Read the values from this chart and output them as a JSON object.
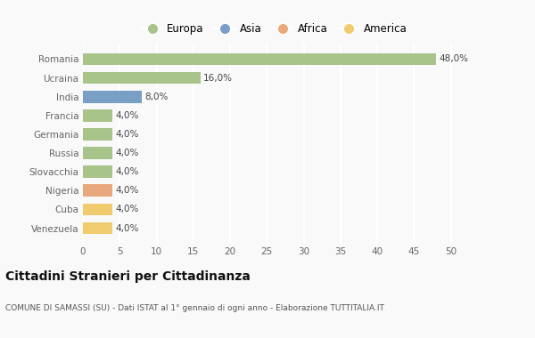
{
  "countries": [
    "Venezuela",
    "Cuba",
    "Nigeria",
    "Slovacchia",
    "Russia",
    "Germania",
    "Francia",
    "India",
    "Ucraina",
    "Romania"
  ],
  "values": [
    4.0,
    4.0,
    4.0,
    4.0,
    4.0,
    4.0,
    4.0,
    8.0,
    16.0,
    48.0
  ],
  "colors": [
    "#f0cc6e",
    "#f0cc6e",
    "#e8a87c",
    "#a8c48a",
    "#a8c48a",
    "#a8c48a",
    "#a8c48a",
    "#7a9fc4",
    "#a8c48a",
    "#a8c48a"
  ],
  "labels": [
    "4,0%",
    "4,0%",
    "4,0%",
    "4,0%",
    "4,0%",
    "4,0%",
    "4,0%",
    "8,0%",
    "16,0%",
    "48,0%"
  ],
  "legend_labels": [
    "Europa",
    "Asia",
    "Africa",
    "America"
  ],
  "legend_colors": [
    "#a8c48a",
    "#7a9fc4",
    "#e8a87c",
    "#f0cc6e"
  ],
  "title": "Cittadini Stranieri per Cittadinanza",
  "subtitle": "COMUNE DI SAMASSI (SU) - Dati ISTAT al 1° gennaio di ogni anno - Elaborazione TUTTITALIA.IT",
  "xlim": [
    0,
    52
  ],
  "xticks": [
    0,
    5,
    10,
    15,
    20,
    25,
    30,
    35,
    40,
    45,
    50
  ],
  "bg_color": "#f9f9f9",
  "grid_color": "#ffffff",
  "bar_height": 0.65
}
